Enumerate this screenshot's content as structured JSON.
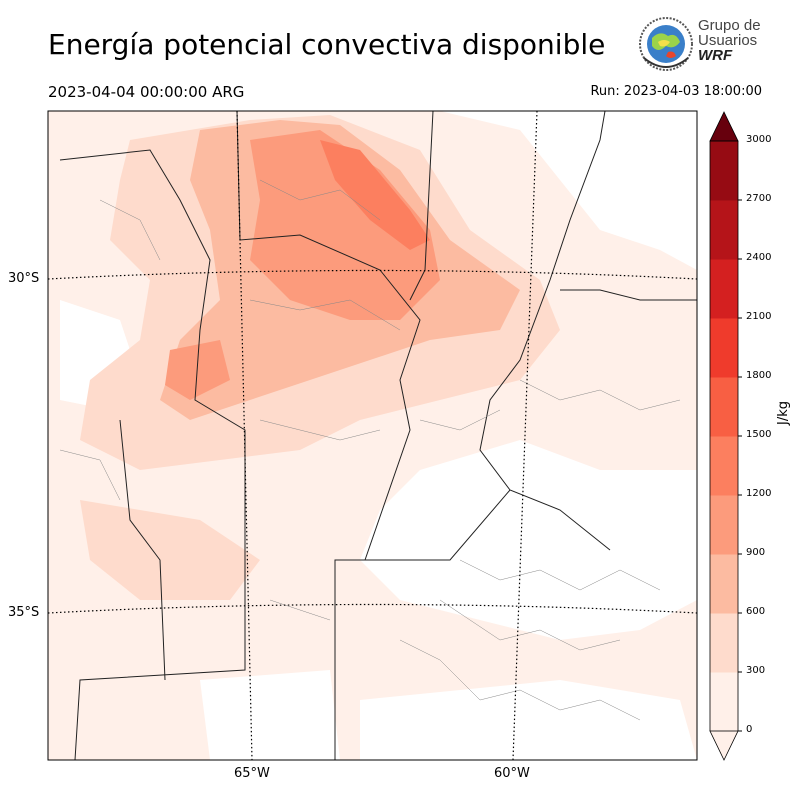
{
  "header": {
    "title": "Energía potencial convectiva disponible",
    "valid_time": "2023-04-04 00:00:00 ARG",
    "run_time": "Run: 2023-04-03 18:00:00"
  },
  "logo": {
    "line1": "Grupo de",
    "line2": "Usuarios",
    "line3": "WRF"
  },
  "map": {
    "lat_labels": [
      "30°S",
      "35°S"
    ],
    "lon_labels": [
      "65°W",
      "60°W"
    ]
  },
  "colorbar": {
    "units": "J/kg",
    "ticks": [
      "0",
      "300",
      "600",
      "900",
      "1200",
      "1500",
      "1800",
      "2100",
      "2400",
      "2700",
      "3000"
    ],
    "colors": [
      "#fff0e9",
      "#fedbcc",
      "#fcbba1",
      "#fc9b7c",
      "#fc7f5f",
      "#f85f43",
      "#ef3b2c",
      "#d42020",
      "#b51419",
      "#960b13",
      "#67000d"
    ]
  }
}
